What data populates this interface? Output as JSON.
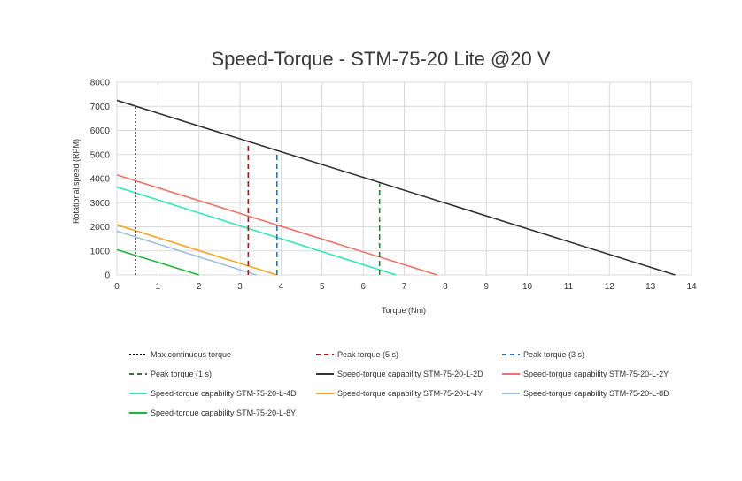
{
  "chart_data": {
    "type": "line",
    "title": "Speed-Torque - STM-75-20 Lite @20 V",
    "xlabel": "Torque (Nm)",
    "ylabel": "Rotational speed (RPM)",
    "xlim": [
      0,
      14
    ],
    "ylim": [
      0,
      8000
    ],
    "x_ticks": [
      "0",
      "1",
      "2",
      "3",
      "4",
      "5",
      "6",
      "7",
      "8",
      "9",
      "10",
      "11",
      "12",
      "13",
      "14"
    ],
    "y_ticks": [
      "0",
      "1000",
      "2000",
      "3000",
      "4000",
      "5000",
      "6000",
      "7000",
      "8000"
    ],
    "grid": true,
    "legend_position": "bottom",
    "series": [
      {
        "name": "Max continuous torque",
        "color": "#000000",
        "style": "dotted",
        "x": [
          0.45,
          0.45
        ],
        "y": [
          0,
          7000
        ]
      },
      {
        "name": "Peak torque (5 s)",
        "color": "#a61c1c",
        "style": "dashed",
        "x": [
          3.2,
          3.2
        ],
        "y": [
          0,
          5550
        ]
      },
      {
        "name": "Peak torque (3 s)",
        "color": "#2e75b6",
        "style": "dashed",
        "x": [
          3.9,
          3.9
        ],
        "y": [
          0,
          5150
        ]
      },
      {
        "name": "Peak torque (1 s)",
        "color": "#2e7d32",
        "style": "dashed",
        "x": [
          6.4,
          6.4
        ],
        "y": [
          0,
          3800
        ]
      },
      {
        "name": "Speed-torque capability STM-75-20-L-2D",
        "color": "#333333",
        "style": "solid",
        "x": [
          0,
          13.6
        ],
        "y": [
          7250,
          0
        ]
      },
      {
        "name": "Speed-torque capability STM-75-20-L-2Y",
        "color": "#f07167",
        "style": "solid",
        "x": [
          0,
          7.8
        ],
        "y": [
          4150,
          0
        ]
      },
      {
        "name": "Speed-torque capability STM-75-20-L-4D",
        "color": "#2ee8b6",
        "style": "solid",
        "x": [
          0,
          6.8
        ],
        "y": [
          3650,
          0
        ]
      },
      {
        "name": "Speed-torque capability STM-75-20-L-4Y",
        "color": "#f5a623",
        "style": "solid",
        "x": [
          0,
          3.9
        ],
        "y": [
          2080,
          0
        ]
      },
      {
        "name": "Speed-torque capability STM-75-20-L-8D",
        "color": "#9fbfe0",
        "style": "solid",
        "x": [
          0,
          3.4
        ],
        "y": [
          1820,
          0
        ]
      },
      {
        "name": "Speed-torque capability STM-75-20-L-8Y",
        "color": "#1db83a",
        "style": "solid",
        "x": [
          0,
          2.0
        ],
        "y": [
          1050,
          0
        ]
      }
    ]
  }
}
